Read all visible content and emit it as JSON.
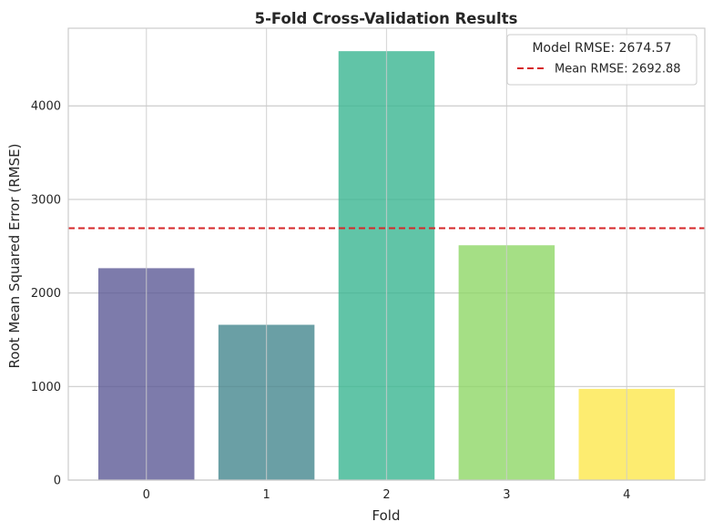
{
  "chart_data": {
    "type": "bar",
    "title": "5-Fold Cross-Validation Results",
    "xlabel": "Fold",
    "ylabel": "Root Mean Squared Error (RMSE)",
    "categories": [
      "0",
      "1",
      "2",
      "3",
      "4"
    ],
    "values": [
      2265,
      1660,
      4585,
      2510,
      975
    ],
    "bar_colors": [
      "#5c5a96",
      "#45878f",
      "#3ab591",
      "#8fd767",
      "#fde74c"
    ],
    "ylim": [
      0,
      4830
    ],
    "yticks": [
      0,
      1000,
      2000,
      3000,
      4000
    ],
    "grid": true,
    "mean_line": {
      "value": 2692.88,
      "color": "#d62728",
      "style": "dashed"
    },
    "legend": {
      "position": "top-right",
      "title": "Model RMSE: 2674.57",
      "entries": [
        {
          "label": "Mean RMSE: 2692.88",
          "color": "#d62728",
          "style": "dashed"
        }
      ]
    }
  }
}
